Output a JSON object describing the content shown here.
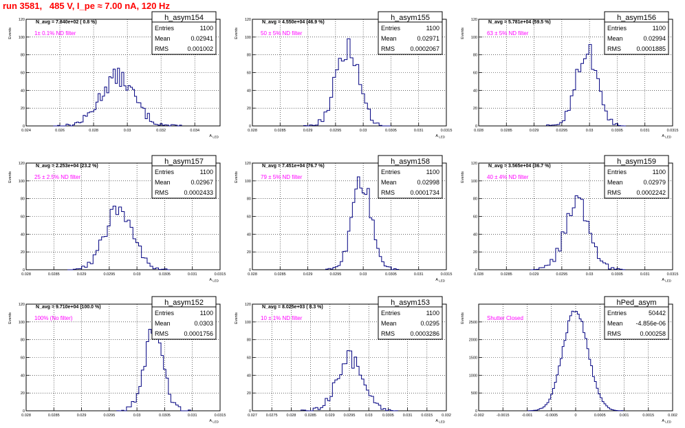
{
  "page": {
    "title": "run 3581,   485 V, I_pe ≈ 7.00 nA, 120 Hz"
  },
  "style": {
    "line_color": "#000080",
    "annotation_color": "#ff00ff",
    "title_color": "#ff0000",
    "grid_color": "#000000"
  },
  "chart_data": [
    {
      "type": "histogram",
      "hist_name": "h_asym154",
      "ylabel": "Events",
      "xlabel": "A_LED",
      "xlim": [
        0.024,
        0.0355
      ],
      "ylim": [
        0,
        120
      ],
      "xticks": [
        0.024,
        0.026,
        0.028,
        0.03,
        0.032,
        0.034
      ],
      "xtick_labels": [
        "0.024",
        "0.026",
        "0.028",
        "0.03",
        "0.032",
        "0.034"
      ],
      "yticks": [
        0,
        20,
        40,
        60,
        80,
        100,
        120
      ],
      "navg": "N_avg = 7.840e+02 ( 0.8 %)",
      "filter": "1± 0.1% ND filter",
      "stats": [
        [
          "Entries",
          "1100"
        ],
        [
          "Mean",
          "0.02941"
        ],
        [
          "RMS",
          "0.001002"
        ]
      ],
      "mean": 0.02941,
      "rms": 0.001002,
      "peak": 55,
      "nbins": 60,
      "grid": true
    },
    {
      "type": "histogram",
      "hist_name": "h_asym155",
      "ylabel": "Events",
      "xlabel": "A_LED",
      "xlim": [
        0.028,
        0.0315
      ],
      "ylim": [
        0,
        120
      ],
      "xticks": [
        0.028,
        0.0285,
        0.029,
        0.0295,
        0.03,
        0.0305,
        0.031,
        0.0315
      ],
      "xtick_labels": [
        "0.028",
        "0.0285",
        "0.029",
        "0.0295",
        "0.03",
        "0.0305",
        "0.031",
        "0.0315"
      ],
      "yticks": [
        0,
        20,
        40,
        60,
        80,
        100,
        120
      ],
      "navg": "N_avg = 4.550e+04 (46.9 %)",
      "filter": "50 ± 5% ND filter",
      "stats": [
        [
          "Entries",
          "1100"
        ],
        [
          "Mean",
          "0.02971"
        ],
        [
          "RMS",
          "0.0002067"
        ]
      ],
      "mean": 0.02971,
      "rms": 0.0002067,
      "peak": 87,
      "nbins": 30,
      "grid": true
    },
    {
      "type": "histogram",
      "hist_name": "h_asym156",
      "ylabel": "Events",
      "xlabel": "A_LED",
      "xlim": [
        0.028,
        0.0315
      ],
      "ylim": [
        0,
        120
      ],
      "xticks": [
        0.028,
        0.0285,
        0.029,
        0.0295,
        0.03,
        0.0305,
        0.031,
        0.0315
      ],
      "xtick_labels": [
        "0.028",
        "0.0285",
        "0.029",
        "0.0295",
        "0.03",
        "0.0305",
        "0.031",
        "0.0315"
      ],
      "yticks": [
        0,
        20,
        40,
        60,
        80,
        100,
        120
      ],
      "navg": "N_avg = 5.781e+04 (59.5 %)",
      "filter": "63 ± 5% ND filter",
      "stats": [
        [
          "Entries",
          "1100"
        ],
        [
          "Mean",
          "0.02994"
        ],
        [
          "RMS",
          "0.0001885"
        ]
      ],
      "mean": 0.02994,
      "rms": 0.0001885,
      "peak": 86,
      "nbins": 30,
      "grid": true
    },
    {
      "type": "histogram",
      "hist_name": "h_asym157",
      "ylabel": "Events",
      "xlabel": "A_LED",
      "xlim": [
        0.028,
        0.0315
      ],
      "ylim": [
        0,
        120
      ],
      "xticks": [
        0.028,
        0.0285,
        0.029,
        0.0295,
        0.03,
        0.0305,
        0.031,
        0.0315
      ],
      "xtick_labels": [
        "0.028",
        "0.0285",
        "0.029",
        "0.0295",
        "0.03",
        "0.0305",
        "0.031",
        "0.0315"
      ],
      "yticks": [
        0,
        20,
        40,
        60,
        80,
        100,
        120
      ],
      "navg": "N_avg = 2.253e+04 (23.2 %)",
      "filter": "25 ± 2.5% ND filter",
      "stats": [
        [
          "Entries",
          "1100"
        ],
        [
          "Mean",
          "0.02967"
        ],
        [
          "RMS",
          "0.0002433"
        ]
      ],
      "mean": 0.02967,
      "rms": 0.0002433,
      "peak": 73,
      "nbins": 36,
      "grid": true
    },
    {
      "type": "histogram",
      "hist_name": "h_asym158",
      "ylabel": "Events",
      "xlabel": "A_LED",
      "xlim": [
        0.028,
        0.0315
      ],
      "ylim": [
        0,
        120
      ],
      "xticks": [
        0.028,
        0.0285,
        0.029,
        0.0295,
        0.03,
        0.0305,
        0.031,
        0.0315
      ],
      "xtick_labels": [
        "0.028",
        "0.0285",
        "0.029",
        "0.0295",
        "0.03",
        "0.0305",
        "0.031",
        "0.0315"
      ],
      "yticks": [
        0,
        20,
        40,
        60,
        80,
        100,
        120
      ],
      "navg": "N_avg = 7.451e+04 (76.7 %)",
      "filter": "79 ± 5% ND filter",
      "stats": [
        [
          "Entries",
          "1100"
        ],
        [
          "Mean",
          "0.02998"
        ],
        [
          "RMS",
          "0.0001734"
        ]
      ],
      "mean": 0.02998,
      "rms": 0.0001734,
      "peak": 99,
      "nbins": 30,
      "grid": true
    },
    {
      "type": "histogram",
      "hist_name": "h_asym159",
      "ylabel": "Events",
      "xlabel": "A_LED",
      "xlim": [
        0.028,
        0.0315
      ],
      "ylim": [
        0,
        120
      ],
      "xticks": [
        0.028,
        0.0285,
        0.029,
        0.0295,
        0.03,
        0.0305,
        0.031,
        0.0315
      ],
      "xtick_labels": [
        "0.028",
        "0.0285",
        "0.029",
        "0.0295",
        "0.03",
        "0.0305",
        "0.031",
        "0.0315"
      ],
      "yticks": [
        0,
        20,
        40,
        60,
        80,
        100,
        120
      ],
      "navg": "N_avg = 3.565e+04 (36.7 %)",
      "filter": "40 ± 4% ND filter",
      "stats": [
        [
          "Entries",
          "1100"
        ],
        [
          "Mean",
          "0.02979"
        ],
        [
          "RMS",
          "0.0002242"
        ]
      ],
      "mean": 0.02979,
      "rms": 0.0002242,
      "peak": 75,
      "nbins": 34,
      "grid": true
    },
    {
      "type": "histogram",
      "hist_name": "h_asym152",
      "ylabel": "Events",
      "xlabel": "A_LED",
      "xlim": [
        0.028,
        0.0315
      ],
      "ylim": [
        0,
        120
      ],
      "xticks": [
        0.028,
        0.0285,
        0.029,
        0.0295,
        0.03,
        0.0305,
        0.031,
        0.0315
      ],
      "xtick_labels": [
        "0.028",
        "0.0285",
        "0.029",
        "0.0295",
        "0.03",
        "0.0305",
        "0.031",
        "0.0315"
      ],
      "yticks": [
        0,
        20,
        40,
        60,
        80,
        100,
        120
      ],
      "navg": "N_avg = 9.710e+04 (100.0 %)",
      "filter": "100% (No filter)",
      "stats": [
        [
          "Entries",
          "1100"
        ],
        [
          "Mean",
          "0.0303"
        ],
        [
          "RMS",
          "0.0001756"
        ]
      ],
      "mean": 0.0303,
      "rms": 0.0001756,
      "peak": 90,
      "nbins": 30,
      "grid": true
    },
    {
      "type": "histogram",
      "hist_name": "h_asym153",
      "ylabel": "Events",
      "xlabel": "A_LED",
      "xlim": [
        0.027,
        0.032
      ],
      "ylim": [
        0,
        120
      ],
      "xticks": [
        0.027,
        0.0275,
        0.028,
        0.0285,
        0.029,
        0.0295,
        0.03,
        0.0305,
        0.031,
        0.0315,
        0.032
      ],
      "xtick_labels": [
        "0.027",
        "0.0275",
        "0.028",
        "0.0285",
        "0.029",
        "0.0295",
        "0.03",
        "0.0305",
        "0.031",
        "0.0315",
        "0.032"
      ],
      "yticks": [
        0,
        20,
        40,
        60,
        80,
        100,
        120
      ],
      "navg": "N_avg = 8.025e+03 ( 8.3 %)",
      "filter": "10 ± 1% ND filter",
      "stats": [
        [
          "Entries",
          "1100"
        ],
        [
          "Mean",
          "0.0295"
        ],
        [
          "RMS",
          "0.0003286"
        ]
      ],
      "mean": 0.0295,
      "rms": 0.0003286,
      "peak": 60,
      "nbins": 40,
      "grid": true
    },
    {
      "type": "histogram",
      "hist_name": "hPed_asym",
      "ylabel": "Events",
      "xlabel": "A_LED",
      "xlim": [
        -0.002,
        0.002
      ],
      "ylim": [
        0,
        3000
      ],
      "xticks": [
        -0.002,
        -0.0015,
        -0.001,
        -0.0005,
        0,
        0.0005,
        0.001,
        0.0015,
        0.002
      ],
      "xtick_labels": [
        "-0.002",
        "-0.0015",
        "-0.001",
        "-0.0005",
        "0",
        "0.0005",
        "0.001",
        "0.0015",
        "0.002"
      ],
      "yticks": [
        0,
        500,
        1000,
        1500,
        2000,
        2500
      ],
      "navg": "",
      "filter": "Shutter Closed",
      "stats": [
        [
          "Entries",
          "50442"
        ],
        [
          "Mean",
          "-4.856e-06"
        ],
        [
          "RMS",
          "0.000258"
        ]
      ],
      "mean": -4.856e-06,
      "rms": 0.000258,
      "peak": 2850,
      "nbins": 50,
      "grid": true
    }
  ]
}
